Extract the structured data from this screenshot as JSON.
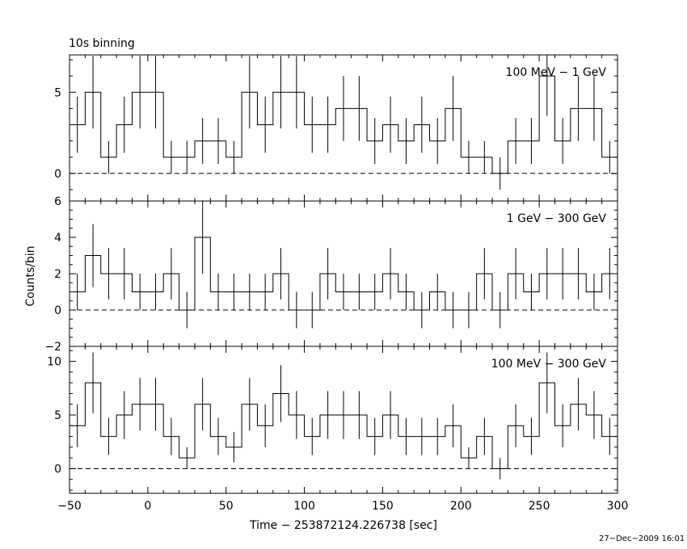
{
  "header": {
    "binning_label": "10s binning",
    "y_axis_label": "Counts/bin",
    "x_axis_label": "Time − 253872124.226738 [sec]",
    "timestamp": "27−Dec−2009 16:01"
  },
  "colors": {
    "line": "#000000",
    "background": "#ffffff"
  },
  "chart_data": [
    {
      "type": "line",
      "style": "step-with-error-bars",
      "label": "100 MeV − 1 GeV",
      "bin_width": 10,
      "xlim": [
        -50,
        300
      ],
      "ylim": [
        -1.7,
        7.3
      ],
      "yticks": [
        0,
        5
      ],
      "yticklabels": [
        "0",
        "5"
      ],
      "reference_line_y": 0,
      "x": [
        -45,
        -35,
        -25,
        -15,
        -5,
        5,
        15,
        25,
        35,
        45,
        55,
        65,
        75,
        85,
        95,
        105,
        115,
        125,
        135,
        145,
        155,
        165,
        175,
        185,
        195,
        205,
        215,
        225,
        235,
        245,
        255,
        265,
        275,
        285,
        295
      ],
      "values": [
        3,
        5,
        1,
        3,
        5,
        5,
        1,
        1,
        2,
        2,
        1,
        5,
        3,
        5,
        5,
        3,
        3,
        4,
        4,
        2,
        3,
        2,
        3,
        2,
        4,
        1,
        1,
        0,
        2,
        2,
        6,
        2,
        4,
        4,
        1
      ]
    },
    {
      "type": "line",
      "style": "step-with-error-bars",
      "label": "1 GeV − 300 GeV",
      "bin_width": 10,
      "xlim": [
        -50,
        300
      ],
      "ylim": [
        -2,
        6
      ],
      "yticks": [
        -2,
        0,
        2,
        4,
        6
      ],
      "yticklabels": [
        "−2",
        "0",
        "2",
        "4",
        "6"
      ],
      "reference_line_y": 0,
      "x": [
        -45,
        -35,
        -25,
        -15,
        -5,
        5,
        15,
        25,
        35,
        45,
        55,
        65,
        75,
        85,
        95,
        105,
        115,
        125,
        135,
        145,
        155,
        165,
        175,
        185,
        195,
        205,
        215,
        225,
        235,
        245,
        255,
        265,
        275,
        285,
        295
      ],
      "values": [
        1,
        3,
        2,
        2,
        1,
        1,
        2,
        0,
        4,
        1,
        1,
        1,
        1,
        2,
        0,
        0,
        2,
        1,
        1,
        1,
        2,
        1,
        0,
        1,
        0,
        0,
        2,
        0,
        2,
        1,
        2,
        2,
        2,
        1,
        2
      ]
    },
    {
      "type": "line",
      "style": "step-with-error-bars",
      "label": "100 MeV − 300 GeV",
      "bin_width": 10,
      "xlim": [
        -50,
        300
      ],
      "ylim": [
        -2.3,
        11.4
      ],
      "yticks": [
        0,
        5,
        10
      ],
      "yticklabels": [
        "0",
        "5",
        "10"
      ],
      "reference_line_y": 0,
      "xticks": [
        -50,
        0,
        50,
        100,
        150,
        200,
        250,
        300
      ],
      "xticklabels": [
        "−50",
        "0",
        "50",
        "100",
        "150",
        "200",
        "250",
        "300"
      ],
      "x": [
        -45,
        -35,
        -25,
        -15,
        -5,
        5,
        15,
        25,
        35,
        45,
        55,
        65,
        75,
        85,
        95,
        105,
        115,
        125,
        135,
        145,
        155,
        165,
        175,
        185,
        195,
        205,
        215,
        225,
        235,
        245,
        255,
        265,
        275,
        285,
        295
      ],
      "values": [
        4,
        8,
        3,
        5,
        6,
        6,
        3,
        1,
        6,
        3,
        2,
        6,
        4,
        7,
        5,
        3,
        5,
        5,
        5,
        3,
        5,
        3,
        3,
        3,
        4,
        1,
        3,
        0,
        4,
        3,
        8,
        4,
        6,
        5,
        3
      ]
    }
  ]
}
